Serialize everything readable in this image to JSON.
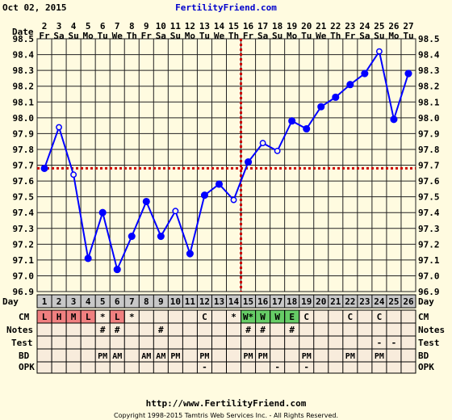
{
  "header": {
    "date": "Oct 02, 2015",
    "brand": "FertilityFriend.com"
  },
  "footer": {
    "url": "http://www.FertilityFriend.com",
    "copyright": "Copyright 1998-2015 Tamtris Web Services Inc. - All Rights Reserved."
  },
  "row_labels": {
    "date": "Date",
    "day": "Day",
    "cm": "CM",
    "notes": "Notes",
    "test": "Test",
    "bd": "BD",
    "opk": "OPK"
  },
  "colors": {
    "background": "#fffbe0",
    "line": "#0000ff",
    "coverline": "#cc0000",
    "cm_pink": "#f08080",
    "cm_green": "#66cc66"
  },
  "chart_data": {
    "type": "line",
    "title": "",
    "xlabel": "Day",
    "ylabel": "",
    "ylim": [
      96.9,
      98.5
    ],
    "yticks": [
      "96.9",
      "97.0",
      "97.1",
      "97.2",
      "97.3",
      "97.4",
      "97.5",
      "97.6",
      "97.7",
      "97.8",
      "97.9",
      "98.0",
      "98.1",
      "98.2",
      "98.3",
      "98.4",
      "98.5"
    ],
    "grid": true,
    "coverline": 97.68,
    "ovulation_day": 14,
    "days": [
      1,
      2,
      3,
      4,
      5,
      6,
      7,
      8,
      9,
      10,
      11,
      12,
      13,
      14,
      15,
      16,
      17,
      18,
      19,
      20,
      21,
      22,
      23,
      24,
      25,
      26
    ],
    "dates": [
      "2",
      "3",
      "4",
      "5",
      "6",
      "7",
      "8",
      "9",
      "10",
      "11",
      "12",
      "13",
      "14",
      "15",
      "16",
      "17",
      "18",
      "19",
      "20",
      "21",
      "22",
      "23",
      "24",
      "25",
      "26",
      "27"
    ],
    "weekdays": [
      "Fr",
      "Sa",
      "Su",
      "Mo",
      "Tu",
      "We",
      "Th",
      "Fr",
      "Sa",
      "Su",
      "Mo",
      "Tu",
      "We",
      "Th",
      "Fr",
      "Sa",
      "Su",
      "Mo",
      "Tu",
      "We",
      "Th",
      "Fr",
      "Sa",
      "Su",
      "Mo",
      "Tu"
    ],
    "temps": [
      97.68,
      97.94,
      97.64,
      97.11,
      97.4,
      97.04,
      97.25,
      97.47,
      97.25,
      97.41,
      97.14,
      97.51,
      97.58,
      97.48,
      97.72,
      97.84,
      97.79,
      97.98,
      97.93,
      98.07,
      98.13,
      98.21,
      98.28,
      98.42,
      97.99,
      98.28
    ],
    "open_points": [
      2,
      3,
      10,
      14,
      16,
      17,
      24
    ],
    "rows": {
      "cm": [
        "L",
        "H",
        "M",
        "L",
        "*",
        "L",
        "*",
        "",
        "",
        "",
        "",
        "C",
        "",
        "*",
        "W*",
        "W",
        "W",
        "E",
        "C",
        "",
        "",
        "C",
        "",
        "C",
        "",
        ""
      ],
      "cm_color": [
        "pink",
        "pink",
        "pink",
        "pink",
        "",
        "pink",
        "",
        "",
        "",
        "",
        "",
        "",
        "",
        "",
        "green",
        "green",
        "green",
        "green",
        "",
        "",
        "",
        "",
        "",
        "",
        "",
        ""
      ],
      "notes": [
        "",
        "",
        "",
        "",
        "#",
        "#",
        "",
        "",
        "#",
        "",
        "",
        "",
        "",
        "",
        "#",
        "#",
        "",
        "#",
        "",
        "",
        "",
        "",
        "",
        "",
        "",
        ""
      ],
      "test": [
        "",
        "",
        "",
        "",
        "",
        "",
        "",
        "",
        "",
        "",
        "",
        "",
        "",
        "",
        "",
        "",
        "",
        "",
        "",
        "",
        "",
        "",
        "",
        "-",
        "-",
        ""
      ],
      "bd": [
        "",
        "",
        "",
        "",
        "PM",
        "AM",
        "",
        "AM",
        "AM",
        "PM",
        "",
        "PM",
        "",
        "",
        "PM",
        "PM",
        "",
        "",
        "PM",
        "",
        "",
        "PM",
        "",
        "PM",
        "",
        ""
      ],
      "opk": [
        "",
        "",
        "",
        "",
        "",
        "",
        "",
        "",
        "",
        "",
        "",
        "-",
        "",
        "",
        "",
        "",
        "-",
        "",
        "-",
        "",
        "",
        "",
        "",
        "",
        "",
        ""
      ]
    }
  }
}
